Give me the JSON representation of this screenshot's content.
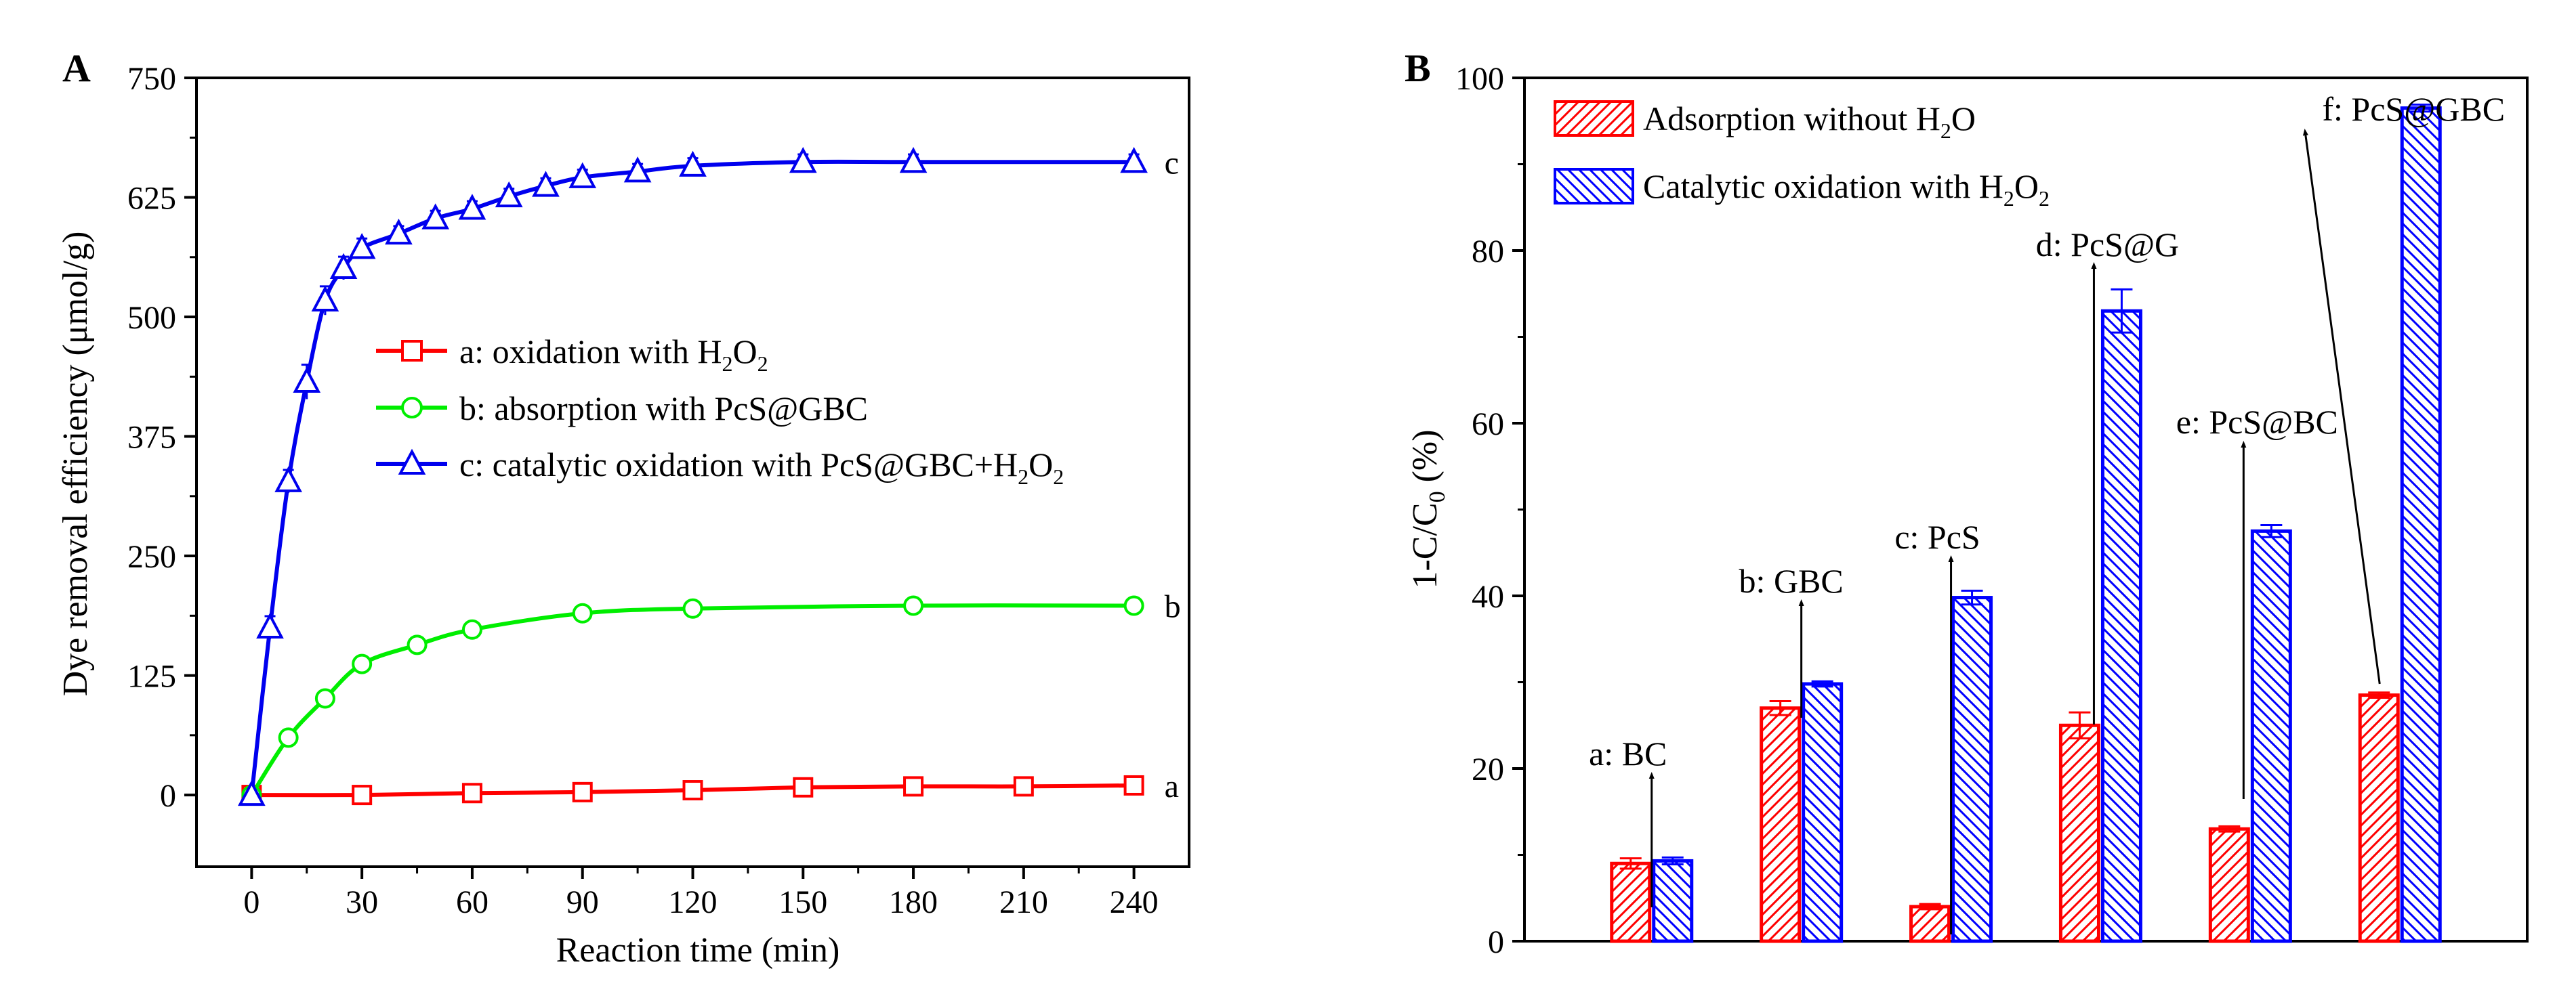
{
  "chart_data": [
    {
      "type": "line",
      "panel_label": "A",
      "xlabel": "Reaction time (min)",
      "ylabel": "Dye removal efficiency (μmol/g)",
      "xlim": [
        -15,
        255
      ],
      "ylim": [
        -75,
        750
      ],
      "xticks": [
        0,
        30,
        60,
        90,
        120,
        150,
        180,
        210,
        240
      ],
      "yticks": [
        0,
        125,
        250,
        375,
        500,
        625,
        750
      ],
      "series": [
        {
          "id": "a",
          "end_label": "a",
          "legend": "a: oxidation with H",
          "legend_suffix": "O",
          "color": "#ff0000",
          "marker": "square",
          "x": [
            0,
            30,
            60,
            90,
            120,
            150,
            180,
            210,
            240
          ],
          "y": [
            0,
            0,
            2,
            3,
            5,
            8,
            9,
            9,
            10
          ]
        },
        {
          "id": "b",
          "end_label": "b",
          "legend": "b: absorption with PcS@GBC",
          "color": "#00ee00",
          "marker": "circle",
          "x": [
            0,
            10,
            20,
            30,
            45,
            60,
            90,
            120,
            180,
            240
          ],
          "y": [
            0,
            60,
            101,
            137,
            157,
            173,
            190,
            195,
            198,
            198
          ]
        },
        {
          "id": "c",
          "end_label": "c",
          "legend": "c: catalytic oxidation with PcS@GBC+H",
          "legend_suffix": "O",
          "color": "#0000ee",
          "marker": "triangle",
          "x": [
            0,
            5,
            10,
            15,
            20,
            25,
            30,
            40,
            50,
            60,
            70,
            80,
            90,
            105,
            120,
            150,
            180,
            240
          ],
          "y": [
            0,
            175,
            328,
            432,
            517,
            551,
            572,
            587,
            603,
            613,
            626,
            637,
            646,
            652,
            658,
            662,
            662,
            662
          ],
          "err": [
            0,
            12,
            12,
            18,
            15,
            12,
            10,
            8,
            8,
            8,
            8,
            8,
            8,
            8,
            8,
            8,
            8,
            8
          ]
        }
      ]
    },
    {
      "type": "bar",
      "panel_label": "B",
      "ylabel": "1-C/C",
      "ylabel_sub": "0",
      "ylabel_unit": " (%)",
      "ylim": [
        0,
        100
      ],
      "yticks": [
        0,
        20,
        40,
        60,
        80,
        100
      ],
      "categories": [
        "a: BC",
        "b: GBC",
        "c: PcS",
        "d: PcS@G",
        "e: PcS@BC",
        "f: PcS@GBC"
      ],
      "series": [
        {
          "name": "Adsorption without H",
          "name_suffix": "O",
          "color": "#ff0000",
          "hatch": "forward",
          "values": [
            9,
            27,
            4,
            25,
            13,
            28.5
          ],
          "err": [
            0.6,
            0.8,
            0.3,
            1.5,
            0.3,
            0.3
          ]
        },
        {
          "name": "Catalytic oxidation with H",
          "name_suffix": "O",
          "color": "#0000ff",
          "hatch": "back",
          "values": [
            9.3,
            29.8,
            39.8,
            73,
            47.5,
            96.5
          ],
          "err": [
            0.4,
            0.3,
            0.8,
            2.5,
            0.7,
            0.4
          ]
        }
      ]
    }
  ]
}
